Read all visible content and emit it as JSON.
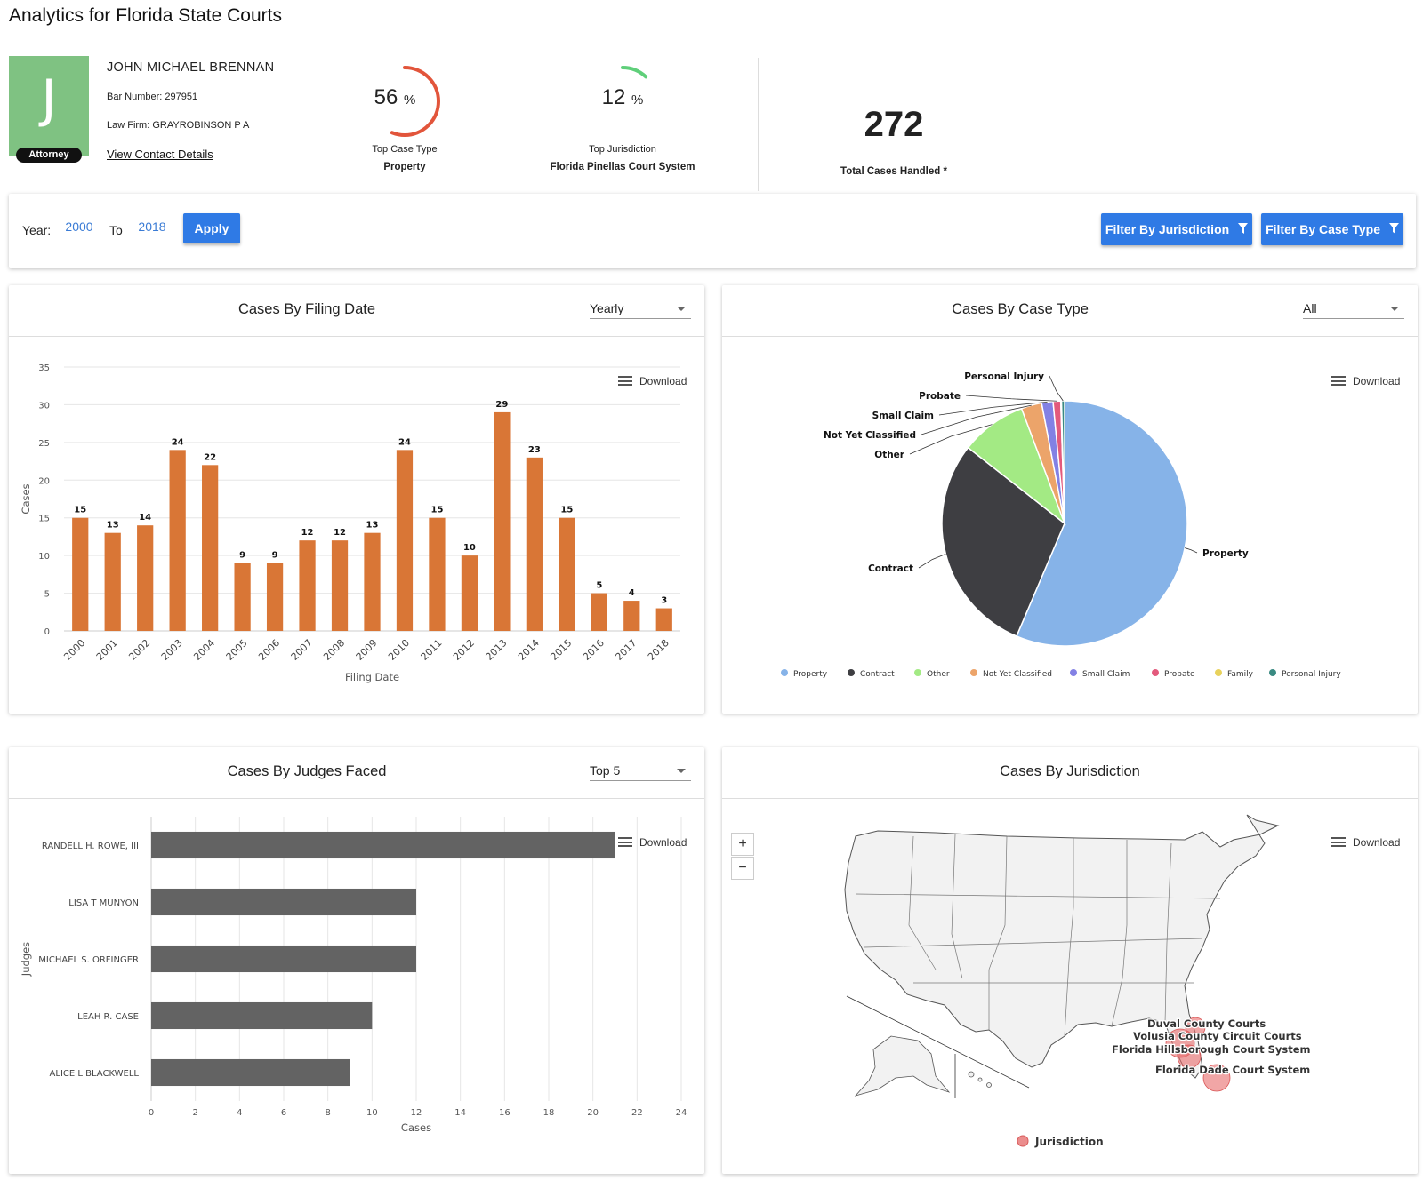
{
  "page_title": "Analytics for Florida State Courts",
  "profile": {
    "avatar_letter": "J",
    "badge": "Attorney",
    "name": "JOHN MICHAEL BRENNAN",
    "bar_number": "Bar Number: 297951",
    "law_firm": "Law Firm: GRAYROBINSON P A",
    "contact_link": "View Contact Details"
  },
  "stats": {
    "top_case_type": {
      "percent": "56",
      "unit": "%",
      "fraction": 0.56,
      "label": "Top Case Type",
      "value": "Property",
      "color": "#e2553b"
    },
    "top_jurisdiction": {
      "percent": "12",
      "unit": "%",
      "fraction": 0.12,
      "label": "Top Jurisdiction",
      "value": "Florida Pinellas Court System",
      "color": "#5fcf7a"
    },
    "total_cases": {
      "value": "272",
      "label": "Total Cases Handled *"
    }
  },
  "filters": {
    "year_label": "Year:",
    "from_value": "2000",
    "to_label": "To",
    "to_value": "2018",
    "apply_label": "Apply",
    "filter_jurisdiction_label": "Filter By Jurisdiction",
    "filter_case_type_label": "Filter By Case Type"
  },
  "cards": {
    "filing_date": {
      "title": "Cases By Filing Date",
      "select_value": "Yearly",
      "download": "Download"
    },
    "case_type": {
      "title": "Cases By Case Type",
      "select_value": "All",
      "download": "Download"
    },
    "judges": {
      "title": "Cases By Judges Faced",
      "select_value": "Top 5",
      "download": "Download"
    },
    "jurisdiction": {
      "title": "Cases By Jurisdiction",
      "download": "Download",
      "zoom_in": "+",
      "zoom_out": "−"
    }
  },
  "chart_data": [
    {
      "type": "bar",
      "title": "Cases By Filing Date",
      "xlabel": "Filing Date",
      "ylabel": "Cases",
      "categories": [
        "2000",
        "2001",
        "2002",
        "2003",
        "2004",
        "2005",
        "2006",
        "2007",
        "2008",
        "2009",
        "2010",
        "2011",
        "2012",
        "2013",
        "2014",
        "2015",
        "2016",
        "2017",
        "2018"
      ],
      "values": [
        15,
        13,
        14,
        24,
        22,
        9,
        9,
        12,
        12,
        13,
        24,
        15,
        10,
        29,
        23,
        15,
        5,
        4,
        3
      ],
      "ylim": [
        0,
        35
      ],
      "yticks": [
        0,
        5,
        10,
        15,
        20,
        25,
        30,
        35
      ],
      "color": "#d97636",
      "grid": true
    },
    {
      "type": "pie",
      "title": "Cases By Case Type",
      "slices": [
        {
          "name": "Property",
          "value": 56.4,
          "color": "#86b3e8"
        },
        {
          "name": "Contract",
          "value": 29.2,
          "color": "#3e3e42"
        },
        {
          "name": "Other",
          "value": 8.7,
          "color": "#a3ea84"
        },
        {
          "name": "Not Yet Classified",
          "value": 2.7,
          "color": "#eca46a"
        },
        {
          "name": "Small Claim",
          "value": 1.5,
          "color": "#8381e4"
        },
        {
          "name": "Probate",
          "value": 1.0,
          "color": "#e35a7c"
        },
        {
          "name": "Family",
          "value": 0.1,
          "color": "#e8d25c"
        },
        {
          "name": "Personal Injury",
          "value": 0.4,
          "color": "#3a8a82"
        }
      ],
      "labels_shown": [
        "Personal Injury",
        "Probate",
        "Small Claim",
        "Not Yet Classified",
        "Other",
        "Contract",
        "Property"
      ],
      "legend": "bottom"
    },
    {
      "type": "bar",
      "orientation": "horizontal",
      "title": "Cases By Judges Faced",
      "xlabel": "Cases",
      "ylabel": "Judges",
      "categories": [
        "RANDELL H. ROWE, III",
        "LISA T MUNYON",
        "MICHAEL S. ORFINGER",
        "LEAH R. CASE",
        "ALICE L BLACKWELL"
      ],
      "values": [
        21,
        12,
        12,
        10,
        9
      ],
      "xlim": [
        0,
        24
      ],
      "xticks": [
        0,
        2,
        4,
        6,
        8,
        10,
        12,
        14,
        16,
        18,
        20,
        22,
        24
      ],
      "color": "#636363",
      "grid": true
    }
  ],
  "map": {
    "points": [
      {
        "name": "Duval County Courts"
      },
      {
        "name": "Volusia County Circuit Courts"
      },
      {
        "name": "Florida Hillsborough Court System"
      },
      {
        "name": "Florida Dade Court System"
      }
    ],
    "legend": "Jurisdiction",
    "point_color": "#e86a6a"
  }
}
